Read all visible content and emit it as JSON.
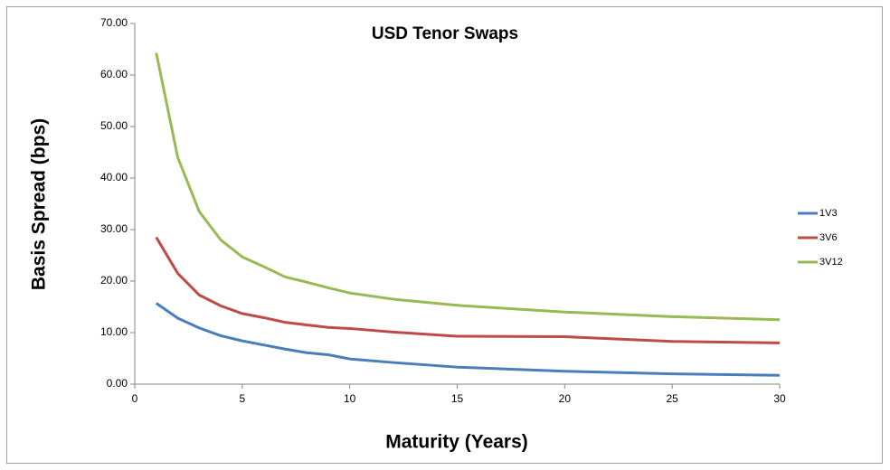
{
  "chart_data": {
    "type": "line",
    "title": "USD Tenor Swaps",
    "x_label": "Maturity (Years)",
    "y_label": "Basis Spread (bps)",
    "x": [
      1,
      2,
      3,
      4,
      5,
      6,
      7,
      8,
      9,
      10,
      12,
      15,
      20,
      25,
      30
    ],
    "series": [
      {
        "name": "1V3",
        "color": "#4a7ebb",
        "values": [
          15.7,
          12.8,
          10.9,
          9.4,
          8.4,
          7.6,
          6.8,
          6.1,
          5.7,
          4.9,
          4.2,
          3.3,
          2.5,
          2.0,
          1.7
        ]
      },
      {
        "name": "3V6",
        "color": "#be4b48",
        "values": [
          28.5,
          21.5,
          17.3,
          15.2,
          13.7,
          12.9,
          12.0,
          11.5,
          11.0,
          10.8,
          10.1,
          9.3,
          9.2,
          8.3,
          8.0
        ]
      },
      {
        "name": "3V12",
        "color": "#98b954",
        "values": [
          64.3,
          44.0,
          33.5,
          28.0,
          24.7,
          22.8,
          20.8,
          19.8,
          18.7,
          17.7,
          16.5,
          15.3,
          14.0,
          13.1,
          12.5
        ]
      }
    ],
    "xlim": [
      0,
      30
    ],
    "xticks": [
      0,
      5,
      10,
      15,
      20,
      25,
      30
    ],
    "ylim": [
      0,
      70
    ],
    "yticks": [
      {
        "value": 0,
        "label": "0.00"
      },
      {
        "value": 10,
        "label": "10.00"
      },
      {
        "value": 20,
        "label": "20.00"
      },
      {
        "value": 30,
        "label": "30.00"
      },
      {
        "value": 40,
        "label": "40.00"
      },
      {
        "value": 50,
        "label": "50.00"
      },
      {
        "value": 60,
        "label": "60.00"
      },
      {
        "value": 70,
        "label": "70.00"
      }
    ],
    "grid": false,
    "legend": "right"
  }
}
